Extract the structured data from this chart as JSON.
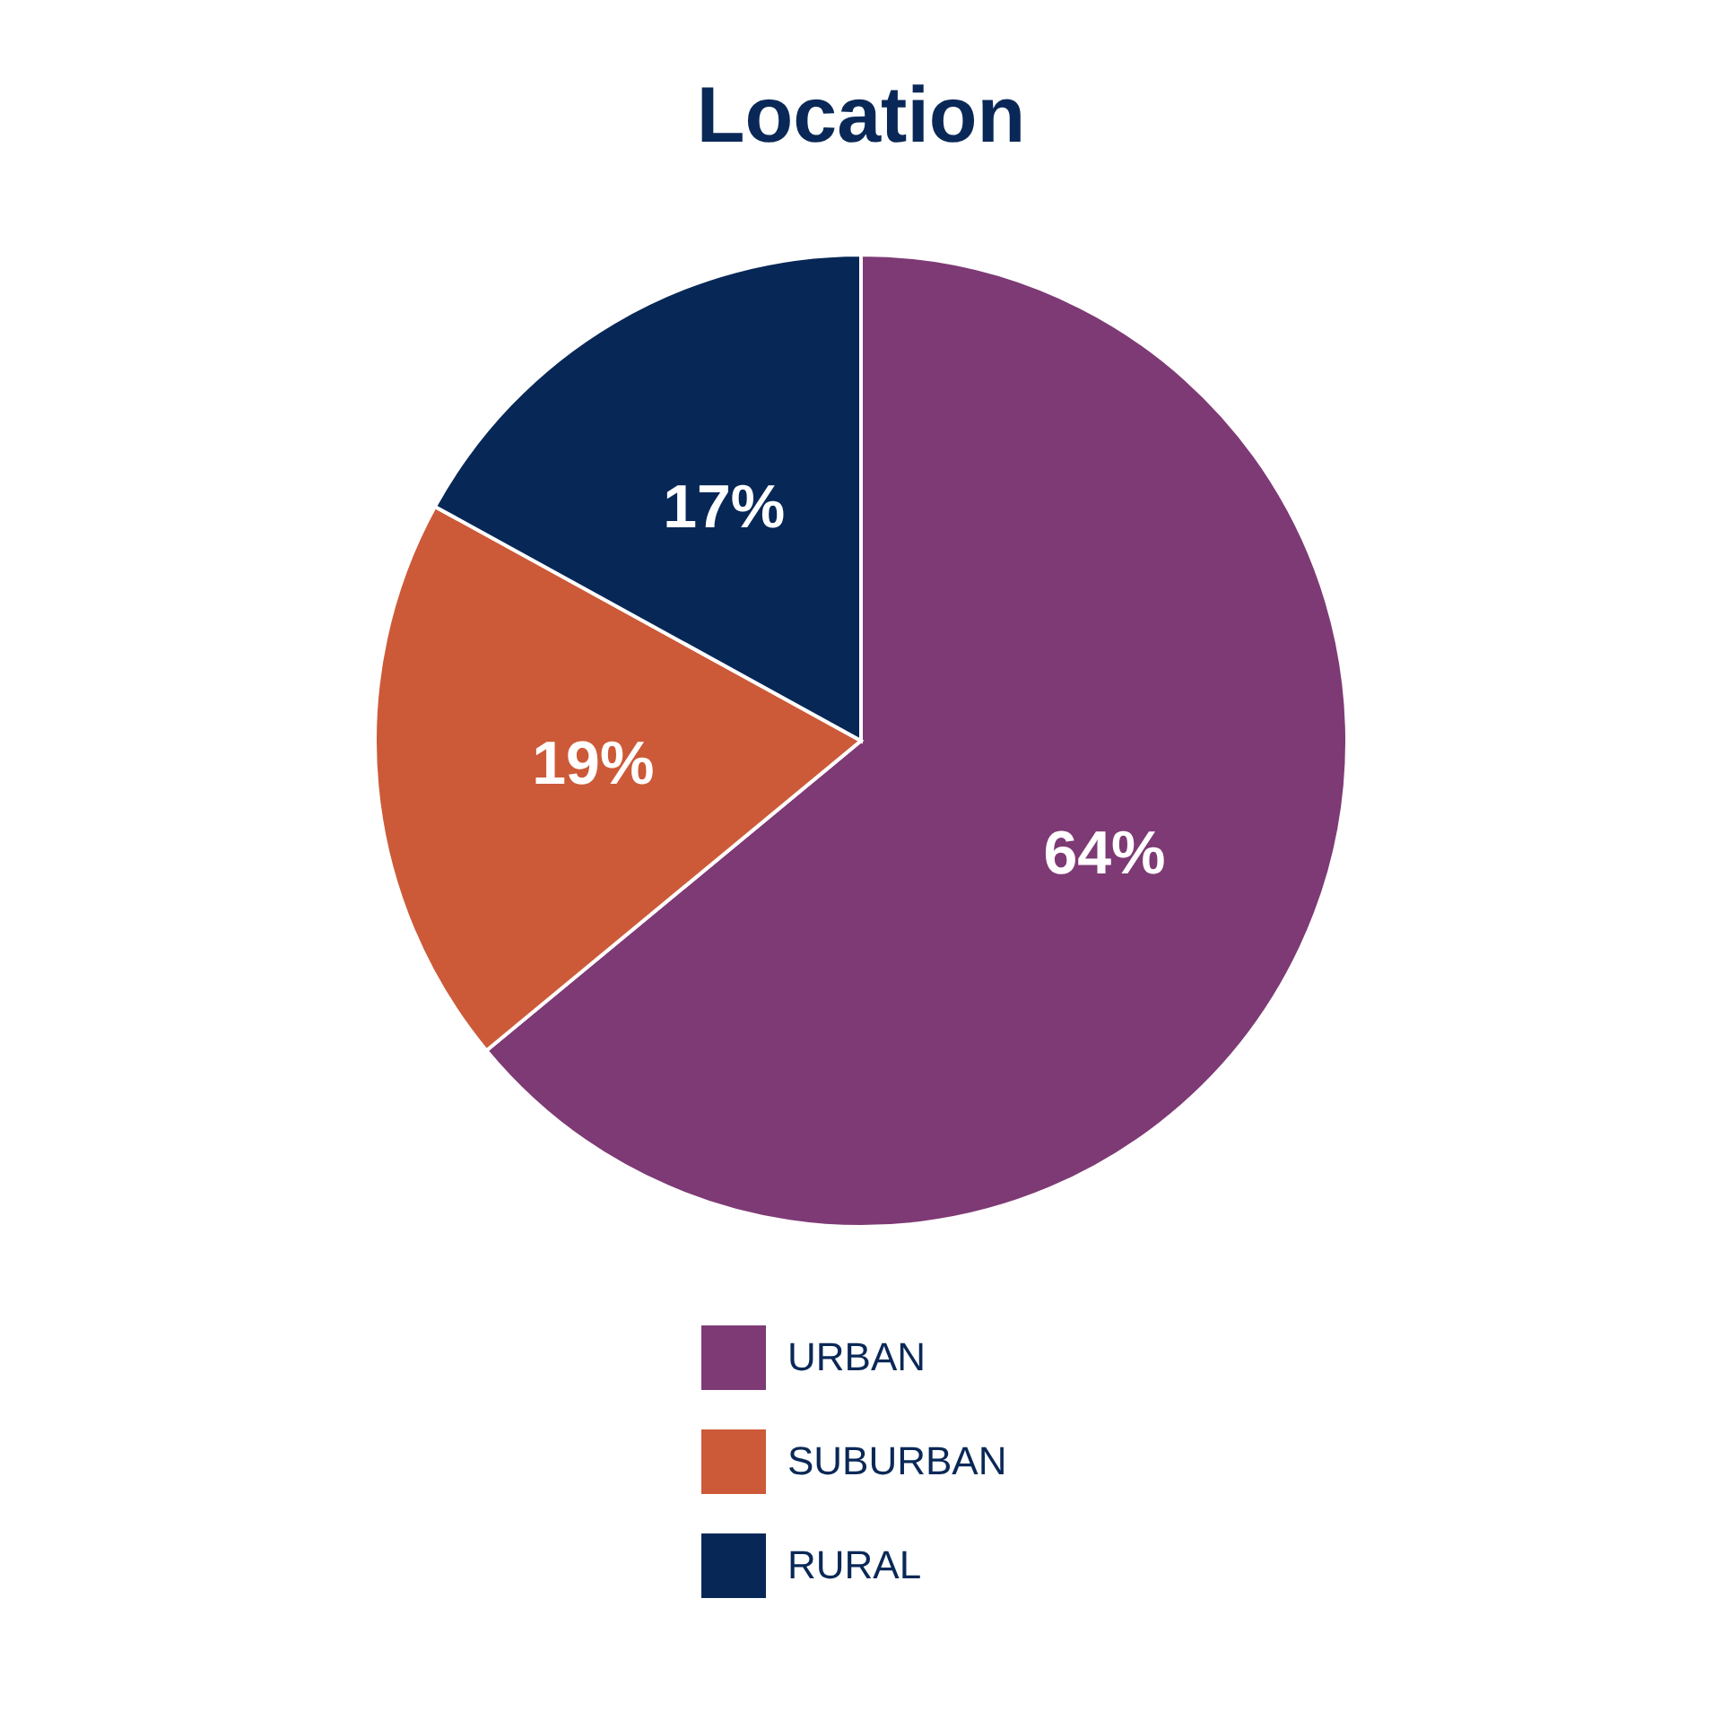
{
  "chart_data": {
    "type": "pie",
    "title": "Location",
    "categories": [
      "URBAN",
      "SUBURBAN",
      "RURAL"
    ],
    "values": [
      64,
      19,
      17
    ],
    "value_labels": [
      "64%",
      "19%",
      "17%"
    ],
    "colors": [
      "#7e3a75",
      "#cc5a38",
      "#072757"
    ],
    "legend": "bottom"
  }
}
